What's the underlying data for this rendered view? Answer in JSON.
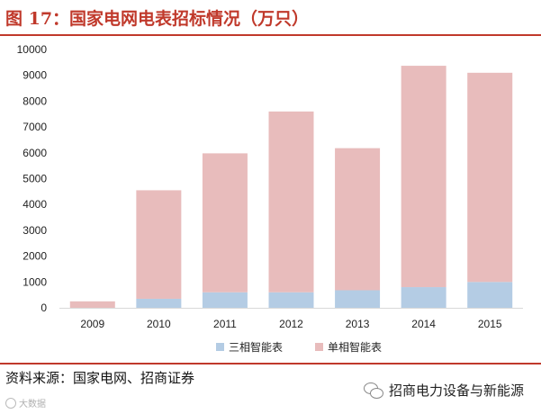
{
  "header": {
    "title": "图 17：国家电网电表招标情况（万只）"
  },
  "footer": {
    "source": "资料来源：国家电网、招商证券",
    "watermark_left": "大数据",
    "wechat_account": "招商电力设备与新能源"
  },
  "colors": {
    "accent": "#c0392b",
    "three_phase": "#b4cce4",
    "single_phase": "#e8bcbc"
  },
  "chart_data": {
    "type": "bar",
    "stacked": true,
    "categories": [
      "2009",
      "2010",
      "2011",
      "2012",
      "2013",
      "2014",
      "2015"
    ],
    "series": [
      {
        "name": "三相智能表",
        "values": [
          0,
          350,
          600,
          600,
          680,
          800,
          1000
        ],
        "color": "#b4cce4"
      },
      {
        "name": "单相智能表",
        "values": [
          250,
          4200,
          5380,
          7000,
          5500,
          8570,
          8100
        ],
        "color": "#e8bcbc"
      }
    ],
    "ylim": [
      0,
      10000
    ],
    "yticks": [
      "0",
      "1000",
      "2000",
      "3000",
      "4000",
      "5000",
      "6000",
      "7000",
      "8000",
      "9000",
      "10000"
    ],
    "xlabel": "",
    "ylabel": "",
    "grid": false,
    "legend": "bottom"
  }
}
